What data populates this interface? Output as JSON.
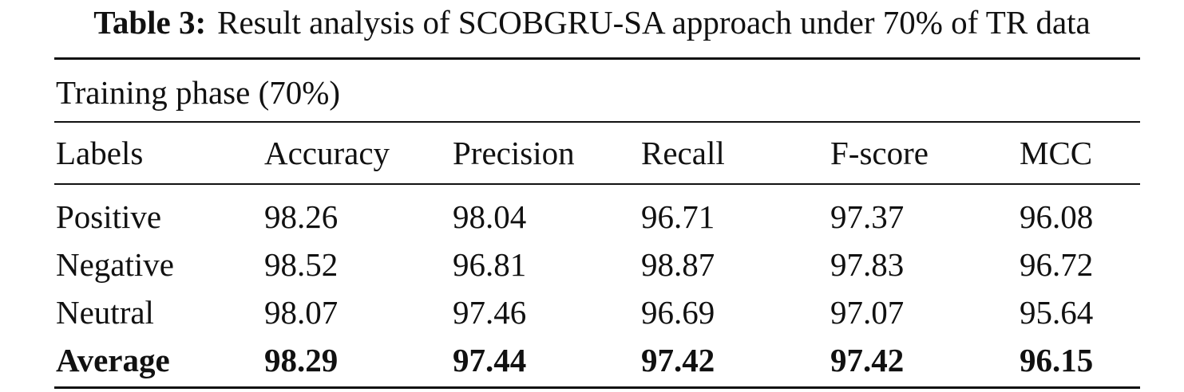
{
  "caption": {
    "label": "Table 3:",
    "text": "Result analysis of SCOBGRU-SA approach under 70% of TR data"
  },
  "table": {
    "section": "Training phase (70%)",
    "header": [
      "Labels",
      "Accuracy",
      "Precision",
      "Recall",
      "F-score",
      "MCC"
    ],
    "rows": [
      [
        "Positive",
        "98.26",
        "98.04",
        "96.71",
        "97.37",
        "96.08"
      ],
      [
        "Negative",
        "98.52",
        "96.81",
        "98.87",
        "97.83",
        "96.72"
      ],
      [
        "Neutral",
        "98.07",
        "97.46",
        "96.69",
        "97.07",
        "95.64"
      ]
    ],
    "average": [
      "Average",
      "98.29",
      "97.44",
      "97.42",
      "97.42",
      "96.15"
    ]
  }
}
